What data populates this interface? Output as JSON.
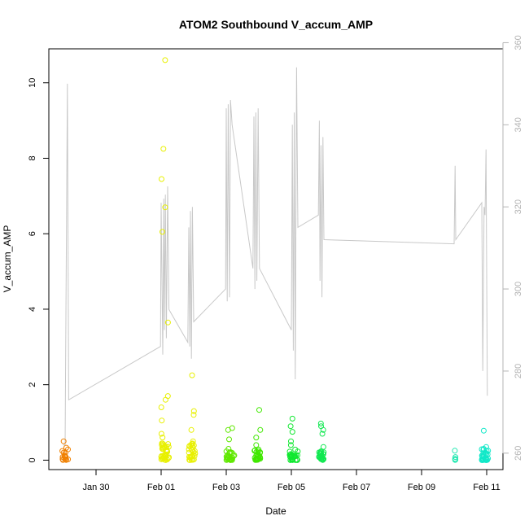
{
  "chart_data": {
    "type": "scatter",
    "title": "ATOM2 Southbound V_accum_AMP",
    "xlabel": "Date",
    "ylabel": "V_accum_AMP",
    "x_ticks": [
      {
        "day": 3,
        "label": "Jan 30"
      },
      {
        "day": 5,
        "label": "Feb 01"
      },
      {
        "day": 7,
        "label": "Feb 03"
      },
      {
        "day": 9,
        "label": "Feb 05"
      },
      {
        "day": 11,
        "label": "Feb 07"
      },
      {
        "day": 13,
        "label": "Feb 09"
      },
      {
        "day": 15,
        "label": "Feb 11"
      }
    ],
    "x_range_days": [
      1.55,
      15.5
    ],
    "ylim": [
      -0.25,
      10.9
    ],
    "y_ticks": [
      0,
      2,
      4,
      6,
      8,
      10
    ],
    "y2lim": [
      256,
      358.5
    ],
    "y2_ticks": [
      260,
      280,
      300,
      320,
      340,
      360
    ],
    "grid": false,
    "series_colors": {
      "jan28": "#f08000",
      "feb01": "#e8f000",
      "feb03": "#60e800",
      "feb04": "#40e800",
      "feb05": "#10e830",
      "feb06": "#10e850",
      "feb10": "#20e8b0",
      "feb11": "#10e8c8",
      "line": "#c8c8c8"
    },
    "scatter_clusters": [
      {
        "name": "jan28",
        "x_days": [
          1.95,
          2.15
        ],
        "base_max": 0.3,
        "highs": [
          0.1,
          0.2,
          0.33,
          0.5
        ],
        "count": 14
      },
      {
        "name": "feb01",
        "x_days": [
          5.0,
          5.25
        ],
        "base_max": 0.45,
        "highs": [
          0.6,
          0.7,
          1.05,
          1.4,
          1.6,
          1.7,
          3.65,
          6.05,
          6.7,
          7.45,
          8.25,
          10.6
        ],
        "count": 40
      },
      {
        "name": "feb01b",
        "x_days": [
          5.85,
          6.05
        ],
        "base_max": 0.45,
        "highs": [
          0.5,
          0.8,
          1.2,
          1.3,
          2.25
        ],
        "count": 30
      },
      {
        "name": "feb03",
        "x_days": [
          7.0,
          7.25
        ],
        "base_max": 0.25,
        "highs": [
          0.3,
          0.55,
          0.8,
          0.85
        ],
        "count": 28
      },
      {
        "name": "feb04",
        "x_days": [
          7.85,
          8.05
        ],
        "base_max": 0.3,
        "highs": [
          0.4,
          0.6,
          0.8,
          1.33
        ],
        "count": 28
      },
      {
        "name": "feb05",
        "x_days": [
          8.95,
          9.2
        ],
        "base_max": 0.3,
        "highs": [
          0.4,
          0.5,
          0.75,
          0.9,
          1.1
        ],
        "count": 30
      },
      {
        "name": "feb06",
        "x_days": [
          9.85,
          10.0
        ],
        "base_max": 0.3,
        "highs": [
          0.35,
          0.7,
          0.8,
          0.9,
          0.97
        ],
        "count": 26
      },
      {
        "name": "feb10",
        "x_days": [
          14.0,
          14.05
        ],
        "base_max": 0.2,
        "highs": [
          0.25
        ],
        "count": 4
      },
      {
        "name": "feb11",
        "x_days": [
          14.85,
          15.05
        ],
        "base_max": 0.3,
        "highs": [
          0.35,
          0.78
        ],
        "count": 28
      }
    ],
    "line_series": {
      "name": "secondary (right axis)",
      "points": [
        [
          1.98,
          262
        ],
        [
          2.05,
          262
        ],
        [
          2.12,
          350
        ],
        [
          2.16,
          273
        ],
        [
          4.98,
          286
        ],
        [
          5.0,
          321
        ],
        [
          5.05,
          284
        ],
        [
          5.08,
          322
        ],
        [
          5.1,
          290
        ],
        [
          5.13,
          323
        ],
        [
          5.16,
          288
        ],
        [
          5.2,
          325
        ],
        [
          5.24,
          295
        ],
        [
          5.82,
          287
        ],
        [
          5.85,
          315
        ],
        [
          5.88,
          286
        ],
        [
          5.9,
          319
        ],
        [
          5.93,
          283
        ],
        [
          5.96,
          320
        ],
        [
          6.0,
          292
        ],
        [
          6.98,
          300
        ],
        [
          7.0,
          344
        ],
        [
          7.03,
          297
        ],
        [
          7.06,
          345
        ],
        [
          7.1,
          298
        ],
        [
          7.13,
          346
        ],
        [
          7.18,
          340
        ],
        [
          7.82,
          305
        ],
        [
          7.85,
          342
        ],
        [
          7.88,
          300
        ],
        [
          7.91,
          343
        ],
        [
          7.94,
          302
        ],
        [
          7.98,
          344
        ],
        [
          8.02,
          305
        ],
        [
          9.0,
          290
        ],
        [
          9.03,
          340
        ],
        [
          9.06,
          285
        ],
        [
          9.09,
          343
        ],
        [
          9.12,
          278
        ],
        [
          9.16,
          354
        ],
        [
          9.2,
          315
        ],
        [
          9.83,
          318
        ],
        [
          9.86,
          341
        ],
        [
          9.88,
          302
        ],
        [
          9.91,
          335
        ],
        [
          9.94,
          298
        ],
        [
          9.97,
          337
        ],
        [
          10.0,
          312
        ],
        [
          14.0,
          311
        ],
        [
          14.03,
          330
        ],
        [
          14.05,
          312
        ],
        [
          14.85,
          321
        ],
        [
          14.88,
          280
        ],
        [
          14.92,
          320
        ],
        [
          14.95,
          318
        ],
        [
          14.98,
          334
        ],
        [
          15.02,
          274
        ]
      ]
    }
  }
}
